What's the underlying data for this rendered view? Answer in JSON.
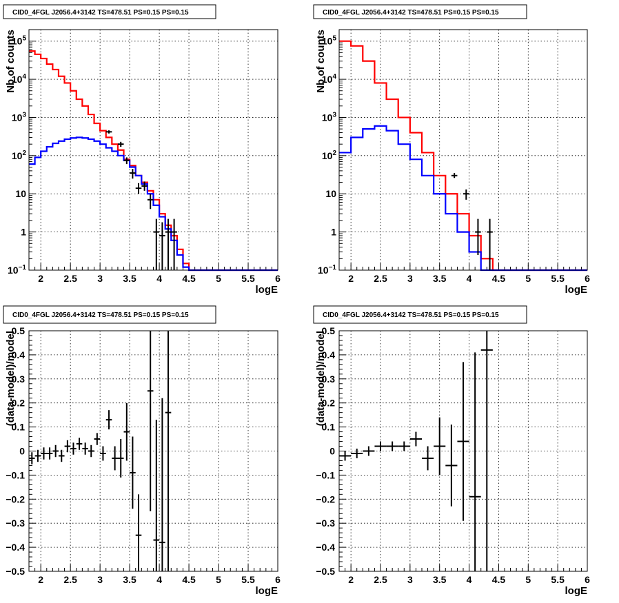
{
  "canvas_background": "#ffffff",
  "colors": {
    "data": "#000000",
    "model": "#ff0000",
    "component": "#0000ff",
    "grid": "#000000"
  },
  "chart_data": [
    {
      "id": "top-left",
      "type": "line",
      "title": "CID0_4FGL J2056.4+3142 TS=478.51 PS=0.15 PS=0.15",
      "xlabel": "logE",
      "ylabel": "Nb of counts",
      "xlim": [
        1.8,
        6.0
      ],
      "ylim": [
        0.1,
        200000
      ],
      "yscale": "log",
      "grid": true,
      "xticks": [
        "2",
        "2.5",
        "3",
        "3.5",
        "4",
        "4.5",
        "5",
        "5.5",
        "6"
      ],
      "yticks": [
        {
          "v": 0.1,
          "base": "10",
          "exp": "−1"
        },
        {
          "v": 1,
          "label": "1"
        },
        {
          "v": 10,
          "label": "10"
        },
        {
          "v": 100,
          "base": "10",
          "exp": "2"
        },
        {
          "v": 1000,
          "base": "10",
          "exp": "3"
        },
        {
          "v": 10000,
          "base": "10",
          "exp": "4"
        },
        {
          "v": 100000,
          "base": "10",
          "exp": "5"
        }
      ],
      "bin_edges": [
        1.8,
        1.9,
        2.0,
        2.1,
        2.2,
        2.3,
        2.4,
        2.5,
        2.6,
        2.7,
        2.8,
        2.9,
        3.0,
        3.1,
        3.2,
        3.3,
        3.4,
        3.5,
        3.6,
        3.7,
        3.8,
        3.9,
        4.0,
        4.1,
        4.2,
        4.3,
        4.4,
        4.5,
        4.6,
        4.7,
        4.8,
        4.9,
        5.0,
        5.1,
        5.2,
        5.3,
        5.4,
        5.5,
        5.6,
        5.7,
        5.8,
        5.9,
        6.0
      ],
      "series": [
        {
          "name": "",
          "kind": "step",
          "color": "#ff0000",
          "values": [
            55000,
            45000,
            35000,
            25000,
            18000,
            12000,
            8000,
            5000,
            3000,
            2000,
            1200,
            700,
            450,
            300,
            200,
            140,
            80,
            55,
            30,
            20,
            12,
            7,
            3,
            1.5,
            0.8,
            0.35,
            0.15,
            0.1,
            0.1,
            0.1,
            0.1,
            0.1,
            0.1,
            0.1,
            0.1,
            0.1,
            0.1,
            0.1,
            0.1,
            0.1,
            0.1,
            0.1
          ]
        },
        {
          "name": "",
          "kind": "step",
          "color": "#0000ff",
          "values": [
            60,
            90,
            130,
            170,
            210,
            240,
            270,
            290,
            300,
            290,
            270,
            240,
            200,
            160,
            130,
            100,
            75,
            50,
            30,
            18,
            10,
            5,
            2.5,
            1.2,
            0.6,
            0.25,
            0.12,
            0.1,
            0.1,
            0.1,
            0.1,
            0.1,
            0.1,
            0.1,
            0.1,
            0.1,
            0.1,
            0.1,
            0.1,
            0.1,
            0.1,
            0.1
          ]
        },
        {
          "name": "",
          "kind": "points",
          "color": "#000000",
          "points": [
            {
              "x": 3.15,
              "y": 420,
              "lo": 380,
              "hi": 460
            },
            {
              "x": 3.35,
              "y": 200,
              "lo": 170,
              "hi": 230
            },
            {
              "x": 3.45,
              "y": 75,
              "lo": 60,
              "hi": 90
            },
            {
              "x": 3.55,
              "y": 35,
              "lo": 25,
              "hi": 45
            },
            {
              "x": 3.65,
              "y": 14,
              "lo": 10,
              "hi": 19
            },
            {
              "x": 3.75,
              "y": 16,
              "lo": 12,
              "hi": 21
            },
            {
              "x": 3.85,
              "y": 7,
              "lo": 4,
              "hi": 10
            },
            {
              "x": 3.95,
              "y": 1,
              "lo": 0.1,
              "hi": 2.2
            },
            {
              "x": 4.05,
              "y": 0.8,
              "lo": 0.1,
              "hi": 1.8
            },
            {
              "x": 4.15,
              "y": 1,
              "lo": 0.1,
              "hi": 2.2
            },
            {
              "x": 4.25,
              "y": 1,
              "lo": 0.1,
              "hi": 2.2
            }
          ]
        }
      ]
    },
    {
      "id": "top-right",
      "type": "line",
      "title": "CID0_4FGL J2056.4+3142 TS=478.51 PS=0.15 PS=0.15",
      "xlabel": "logE",
      "ylabel": "Nb of counts",
      "xlim": [
        1.8,
        6.0
      ],
      "ylim": [
        0.1,
        200000
      ],
      "yscale": "log",
      "grid": true,
      "xticks": [
        "2",
        "2.5",
        "3",
        "3.5",
        "4",
        "4.5",
        "5",
        "5.5",
        "6"
      ],
      "yticks": [
        {
          "v": 0.1,
          "base": "10",
          "exp": "−1"
        },
        {
          "v": 1,
          "label": "1"
        },
        {
          "v": 10,
          "label": "10"
        },
        {
          "v": 100,
          "base": "10",
          "exp": "2"
        },
        {
          "v": 1000,
          "base": "10",
          "exp": "3"
        },
        {
          "v": 10000,
          "base": "10",
          "exp": "4"
        },
        {
          "v": 100000,
          "base": "10",
          "exp": "5"
        }
      ],
      "bin_edges": [
        1.8,
        2.0,
        2.2,
        2.4,
        2.6,
        2.8,
        3.0,
        3.2,
        3.4,
        3.6,
        3.8,
        4.0,
        4.2,
        4.4,
        4.6,
        4.8,
        5.0,
        5.2,
        5.4,
        5.6,
        5.8,
        6.0
      ],
      "series": [
        {
          "name": "",
          "kind": "step",
          "color": "#ff0000",
          "values": [
            100000,
            75000,
            30000,
            8000,
            3000,
            1000,
            400,
            120,
            30,
            10,
            3,
            0.8,
            0.2,
            0.1,
            0.1,
            0.1,
            0.1,
            0.1,
            0.1,
            0.1,
            0.1
          ]
        },
        {
          "name": "",
          "kind": "step",
          "color": "#0000ff",
          "values": [
            120,
            300,
            500,
            600,
            450,
            200,
            80,
            30,
            10,
            3,
            1,
            0.3,
            0.1,
            0.1,
            0.1,
            0.1,
            0.1,
            0.1,
            0.1,
            0.1,
            0.1
          ]
        },
        {
          "name": "",
          "kind": "points",
          "color": "#000000",
          "points": [
            {
              "x": 3.75,
              "y": 30,
              "lo": 26,
              "hi": 35
            },
            {
              "x": 3.95,
              "y": 10,
              "lo": 7,
              "hi": 13
            },
            {
              "x": 4.15,
              "y": 1,
              "lo": 0.25,
              "hi": 2.2
            },
            {
              "x": 4.35,
              "y": 1,
              "lo": 0.1,
              "hi": 2.2
            }
          ]
        }
      ]
    },
    {
      "id": "bottom-left",
      "type": "scatter",
      "title": "CID0_4FGL J2056.4+3142 TS=478.51 PS=0.15 PS=0.15",
      "xlabel": "logE",
      "ylabel": "(data-model)/model",
      "xlim": [
        1.8,
        6.0
      ],
      "ylim": [
        -0.5,
        0.5
      ],
      "grid": true,
      "xticks": [
        "2",
        "2.5",
        "3",
        "3.5",
        "4",
        "4.5",
        "5",
        "5.5",
        "6"
      ],
      "yticks": [
        "−0.5",
        "−0.4",
        "−0.3",
        "−0.2",
        "−0.1",
        "0",
        "0.1",
        "0.2",
        "0.3",
        "0.4",
        "0.5"
      ],
      "xerr": 0.05,
      "points": [
        {
          "x": 1.85,
          "y": -0.03,
          "e": 0.025
        },
        {
          "x": 1.95,
          "y": -0.02,
          "e": 0.025
        },
        {
          "x": 2.05,
          "y": -0.01,
          "e": 0.025
        },
        {
          "x": 2.15,
          "y": -0.01,
          "e": 0.025
        },
        {
          "x": 2.25,
          "y": 0.0,
          "e": 0.025
        },
        {
          "x": 2.35,
          "y": -0.02,
          "e": 0.025
        },
        {
          "x": 2.45,
          "y": 0.02,
          "e": 0.025
        },
        {
          "x": 2.55,
          "y": 0.01,
          "e": 0.025
        },
        {
          "x": 2.65,
          "y": 0.03,
          "e": 0.025
        },
        {
          "x": 2.75,
          "y": 0.01,
          "e": 0.025
        },
        {
          "x": 2.85,
          "y": 0.0,
          "e": 0.025
        },
        {
          "x": 2.95,
          "y": 0.05,
          "e": 0.025
        },
        {
          "x": 3.05,
          "y": -0.01,
          "e": 0.03
        },
        {
          "x": 3.15,
          "y": 0.13,
          "e": 0.04
        },
        {
          "x": 3.25,
          "y": -0.03,
          "e": 0.05
        },
        {
          "x": 3.35,
          "y": -0.03,
          "e": 0.08
        },
        {
          "x": 3.45,
          "y": 0.08,
          "e": 0.12
        },
        {
          "x": 3.55,
          "y": -0.09,
          "e": 0.15
        },
        {
          "x": 3.65,
          "y": -0.35,
          "e": 0.17
        },
        {
          "x": 3.85,
          "y": 0.25,
          "e": 0.5
        },
        {
          "x": 3.95,
          "y": -0.37,
          "e": 0.5
        },
        {
          "x": 4.05,
          "y": -0.38,
          "e": 0.6
        },
        {
          "x": 4.15,
          "y": 0.16,
          "e": 0.9
        }
      ]
    },
    {
      "id": "bottom-right",
      "type": "scatter",
      "title": "CID0_4FGL J2056.4+3142 TS=478.51 PS=0.15 PS=0.15",
      "xlabel": "logE",
      "ylabel": "(data-model)/model",
      "xlim": [
        1.8,
        6.0
      ],
      "ylim": [
        -0.5,
        0.5
      ],
      "grid": true,
      "xticks": [
        "2",
        "2.5",
        "3",
        "3.5",
        "4",
        "4.5",
        "5",
        "5.5",
        "6"
      ],
      "yticks": [
        "−0.5",
        "−0.4",
        "−0.3",
        "−0.2",
        "−0.1",
        "0",
        "0.1",
        "0.2",
        "0.3",
        "0.4",
        "0.5"
      ],
      "xerr": 0.1,
      "points": [
        {
          "x": 1.9,
          "y": -0.02,
          "e": 0.02
        },
        {
          "x": 2.1,
          "y": -0.01,
          "e": 0.02
        },
        {
          "x": 2.3,
          "y": 0.0,
          "e": 0.02
        },
        {
          "x": 2.5,
          "y": 0.02,
          "e": 0.02
        },
        {
          "x": 2.7,
          "y": 0.02,
          "e": 0.02
        },
        {
          "x": 2.9,
          "y": 0.02,
          "e": 0.02
        },
        {
          "x": 3.1,
          "y": 0.05,
          "e": 0.03
        },
        {
          "x": 3.3,
          "y": -0.03,
          "e": 0.05
        },
        {
          "x": 3.5,
          "y": 0.02,
          "e": 0.12
        },
        {
          "x": 3.7,
          "y": -0.06,
          "e": 0.17
        },
        {
          "x": 3.9,
          "y": 0.04,
          "e": 0.33
        },
        {
          "x": 4.1,
          "y": -0.19,
          "e": 0.6
        },
        {
          "x": 4.3,
          "y": 0.42,
          "e": 0.95
        }
      ]
    }
  ]
}
